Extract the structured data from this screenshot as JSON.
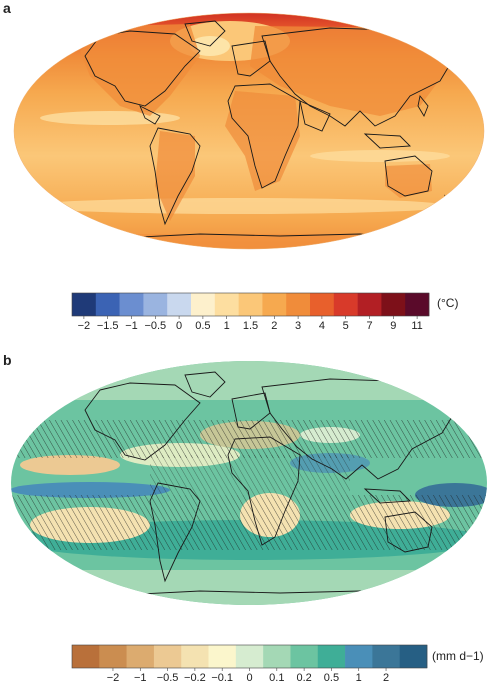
{
  "panel_a": {
    "label": "a",
    "legend": {
      "unit": "(°C)",
      "colors": [
        "#1f3a78",
        "#3b63b4",
        "#6b8ed0",
        "#9ab4e0",
        "#c9d8ee",
        "#fdf0cc",
        "#fddea0",
        "#fbc778",
        "#f6a94f",
        "#f08c3a",
        "#e8602c",
        "#d83a2a",
        "#b21f24",
        "#7d1019",
        "#5a0a2a"
      ],
      "tick_labels": [
        "−2",
        "−1.5",
        "−1",
        "−0.5",
        "0",
        "0.5",
        "1",
        "1.5",
        "2",
        "3",
        "4",
        "5",
        "7",
        "9",
        "11"
      ]
    }
  },
  "panel_b": {
    "label": "b",
    "legend": {
      "unit": "(mm d−1)",
      "colors": [
        "#b9703a",
        "#cb8d50",
        "#dcab6f",
        "#ecc993",
        "#f4e2b1",
        "#fbf6cc",
        "#d6ecd0",
        "#a4d8b5",
        "#6cc4a1",
        "#3fae97",
        "#4a8fb8",
        "#3b7698",
        "#265f84"
      ],
      "tick_labels": [
        "−2",
        "−1",
        "−0.5",
        "−0.2",
        "−0.1",
        "0",
        "0.1",
        "0.2",
        "0.5",
        "1",
        "2"
      ]
    }
  }
}
